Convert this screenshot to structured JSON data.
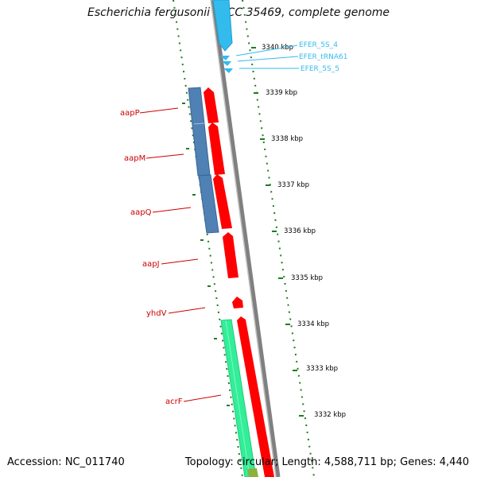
{
  "title": "Escherichia fergusonii ATCC 35469, complete genome",
  "footer": {
    "accession": "Accession: NC_011740",
    "summary": "Topology: circular; Length: 4,588,711 bp; Genes: 4,440"
  },
  "kbp_labels": [
    "3340 kbp",
    "3339 kbp",
    "3338 kbp",
    "3337 kbp",
    "3336 kbp",
    "3335 kbp",
    "3334 kbp",
    "3333 kbp",
    "3332 kbp"
  ],
  "rna_labels": [
    "EFER_5S_4",
    "EFER_tRNA61",
    "EFER_5S_5"
  ],
  "gene_labels": [
    "aapP",
    "aapM",
    "aapQ",
    "aapJ",
    "yhdV",
    "acrF"
  ],
  "colors": {
    "cds": "#ff0000",
    "transporter": "#4f81b5",
    "efflux": "#33ee99",
    "rna": "#33bbee",
    "gc_skew": "#1e7d1e",
    "backbone": "#808080",
    "gene_label": "#cc0000"
  }
}
